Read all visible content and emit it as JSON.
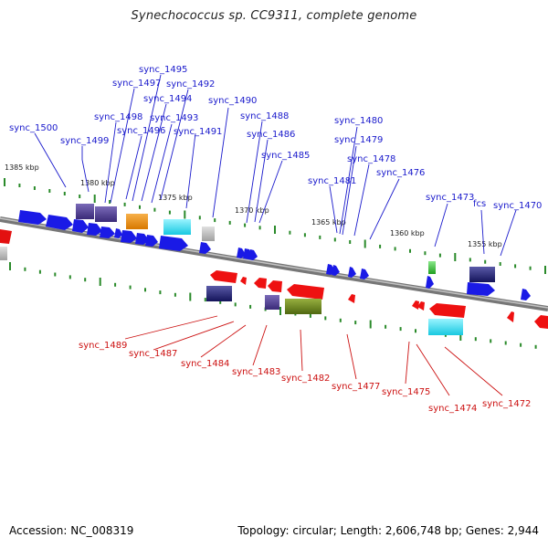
{
  "title": "Synechococcus sp. CC9311, complete genome",
  "footer": {
    "accession": "Accession: NC_008319",
    "topology": "Topology: circular; Length: 2,606,748 bp; Genes: 2,944"
  },
  "colors": {
    "forward_label": "#1a1acc",
    "reverse_label": "#cc1111",
    "forward_gene": "#1a1ae6",
    "reverse_gene": "#ee1111",
    "tick": "#2a8a2a",
    "backbone": "#888888"
  },
  "kbp_markers": [
    "1385 kbp",
    "1380 kbp",
    "1375 kbp",
    "1370 kbp",
    "1365 kbp",
    "1360 kbp",
    "1355 kbp"
  ],
  "forward_labels": [
    "sync_1500",
    "sync_1499",
    "sync_1498",
    "sync_1497",
    "sync_1496",
    "sync_1495",
    "sync_1494",
    "sync_1493",
    "sync_1492",
    "sync_1491",
    "sync_1490",
    "sync_1488",
    "sync_1486",
    "sync_1485",
    "sync_1481",
    "sync_1480",
    "sync_1479",
    "sync_1478",
    "sync_1476",
    "sync_1473",
    "fcs",
    "sync_1470"
  ],
  "reverse_labels": [
    "sync_1489",
    "sync_1487",
    "sync_1484",
    "sync_1483",
    "sync_1482",
    "sync_1477",
    "sync_1475",
    "sync_1474",
    "sync_1472"
  ]
}
